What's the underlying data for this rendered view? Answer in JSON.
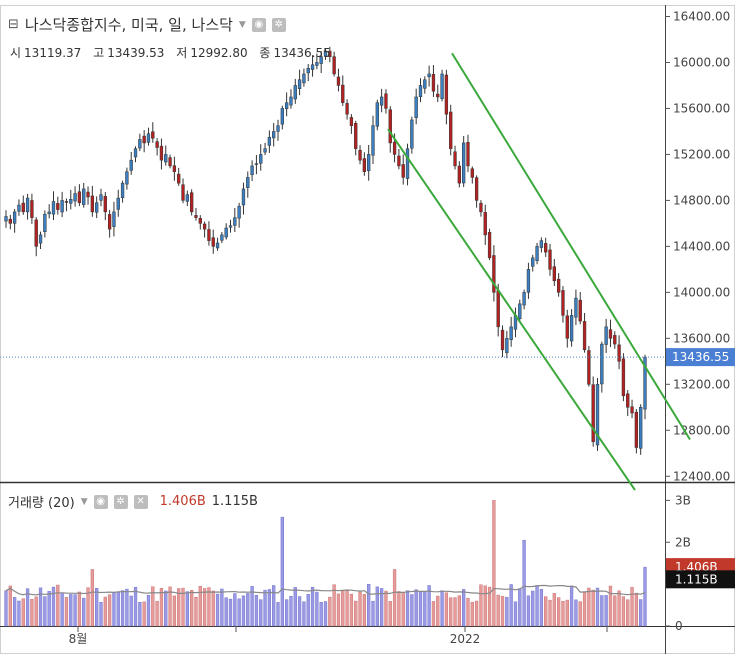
{
  "legend": {
    "title": "나스닥종합지수, 미국, 일, 나스닥",
    "collapse_icon": "minus-square-icon",
    "dropdown_icon": "caret-down-icon",
    "eye_icon": "eye-icon",
    "settings_icon": "gear-icon"
  },
  "ohlc": {
    "open_label": "시",
    "open": "13119.37",
    "high_label": "고",
    "high": "13439.53",
    "low_label": "저",
    "low": "12992.80",
    "close_label": "종",
    "close": "13436.55"
  },
  "volume_legend": {
    "title": "거래량 (20)",
    "value": "1.406B",
    "ma_value": "1.115B",
    "close_icon": "close-icon"
  },
  "x_labels": [
    "8월",
    "2022"
  ],
  "colors": {
    "up": "#3b7fc0",
    "down": "#b22222",
    "channel": "#3aa83a",
    "price_badge": "#4a7fd4",
    "vol_up": "#9999e6",
    "vol_down": "#e69a9a",
    "vol_ma": "#888888"
  },
  "chart_data": [
    {
      "type": "candlestick",
      "title": "나스닥종합지수, 미국, 일, 나스닥",
      "y_ticks": [
        "16400.00",
        "16000.00",
        "15600.00",
        "15200.00",
        "14800.00",
        "14400.00",
        "14000.00",
        "13600.00",
        "13200.00",
        "12800.00",
        "12400.00"
      ],
      "ylim": [
        12350,
        16500
      ],
      "last_price": "13436.55",
      "x_labels": [
        "8월",
        "2022"
      ],
      "closes": [
        14660,
        14600,
        14700,
        14760,
        14700,
        14820,
        14650,
        14400,
        14500,
        14680,
        14700,
        14790,
        14720,
        14800,
        14790,
        14810,
        14860,
        14780,
        14900,
        14830,
        14700,
        14780,
        14850,
        14700,
        14550,
        14700,
        14820,
        14950,
        15050,
        15150,
        15250,
        15330,
        15300,
        15380,
        15340,
        15260,
        15150,
        15200,
        15100,
        15050,
        14950,
        14800,
        14850,
        14700,
        14650,
        14600,
        14550,
        14450,
        14400,
        14430,
        14500,
        14560,
        14580,
        14650,
        14750,
        14900,
        15000,
        15100,
        15120,
        15200,
        15250,
        15350,
        15400,
        15450,
        15600,
        15650,
        15700,
        15800,
        15850,
        15900,
        15950,
        15980,
        16000,
        16050,
        16100,
        16050,
        15900,
        15800,
        15650,
        15550,
        15450,
        15250,
        15150,
        15050,
        15200,
        15450,
        15650,
        15700,
        15600,
        15300,
        15200,
        15100,
        15000,
        15250,
        15500,
        15700,
        15800,
        15850,
        15900,
        15750,
        15700,
        15900,
        15550,
        15250,
        15100,
        14950,
        15300,
        15100,
        15000,
        14800,
        14700,
        14500,
        14300,
        14000,
        13700,
        13500,
        13600,
        13700,
        13800,
        13900,
        14000,
        14200,
        14300,
        14400,
        14450,
        14350,
        14200,
        14100,
        14000,
        13800,
        13600,
        13800,
        13950,
        13750,
        13500,
        13200,
        12700,
        13200,
        13550,
        13700,
        13600,
        13550,
        13400,
        13100,
        13000,
        12950,
        12650,
        13000,
        13436.55
      ],
      "channel_upper": [
        [
          16080,
          "start"
        ],
        [
          12720,
          "end"
        ]
      ],
      "channel_lower": [
        [
          15420,
          "start"
        ],
        [
          12280,
          "end"
        ]
      ]
    },
    {
      "type": "bar",
      "title": "거래량 (20)",
      "y_ticks": [
        "3B",
        "2B",
        "1B",
        "0"
      ],
      "ylim": [
        0,
        3.2
      ],
      "last_value": "1.406B",
      "ma_value": "1.115B",
      "volume_note": "daily volume in billions, 20-period moving average"
    }
  ]
}
